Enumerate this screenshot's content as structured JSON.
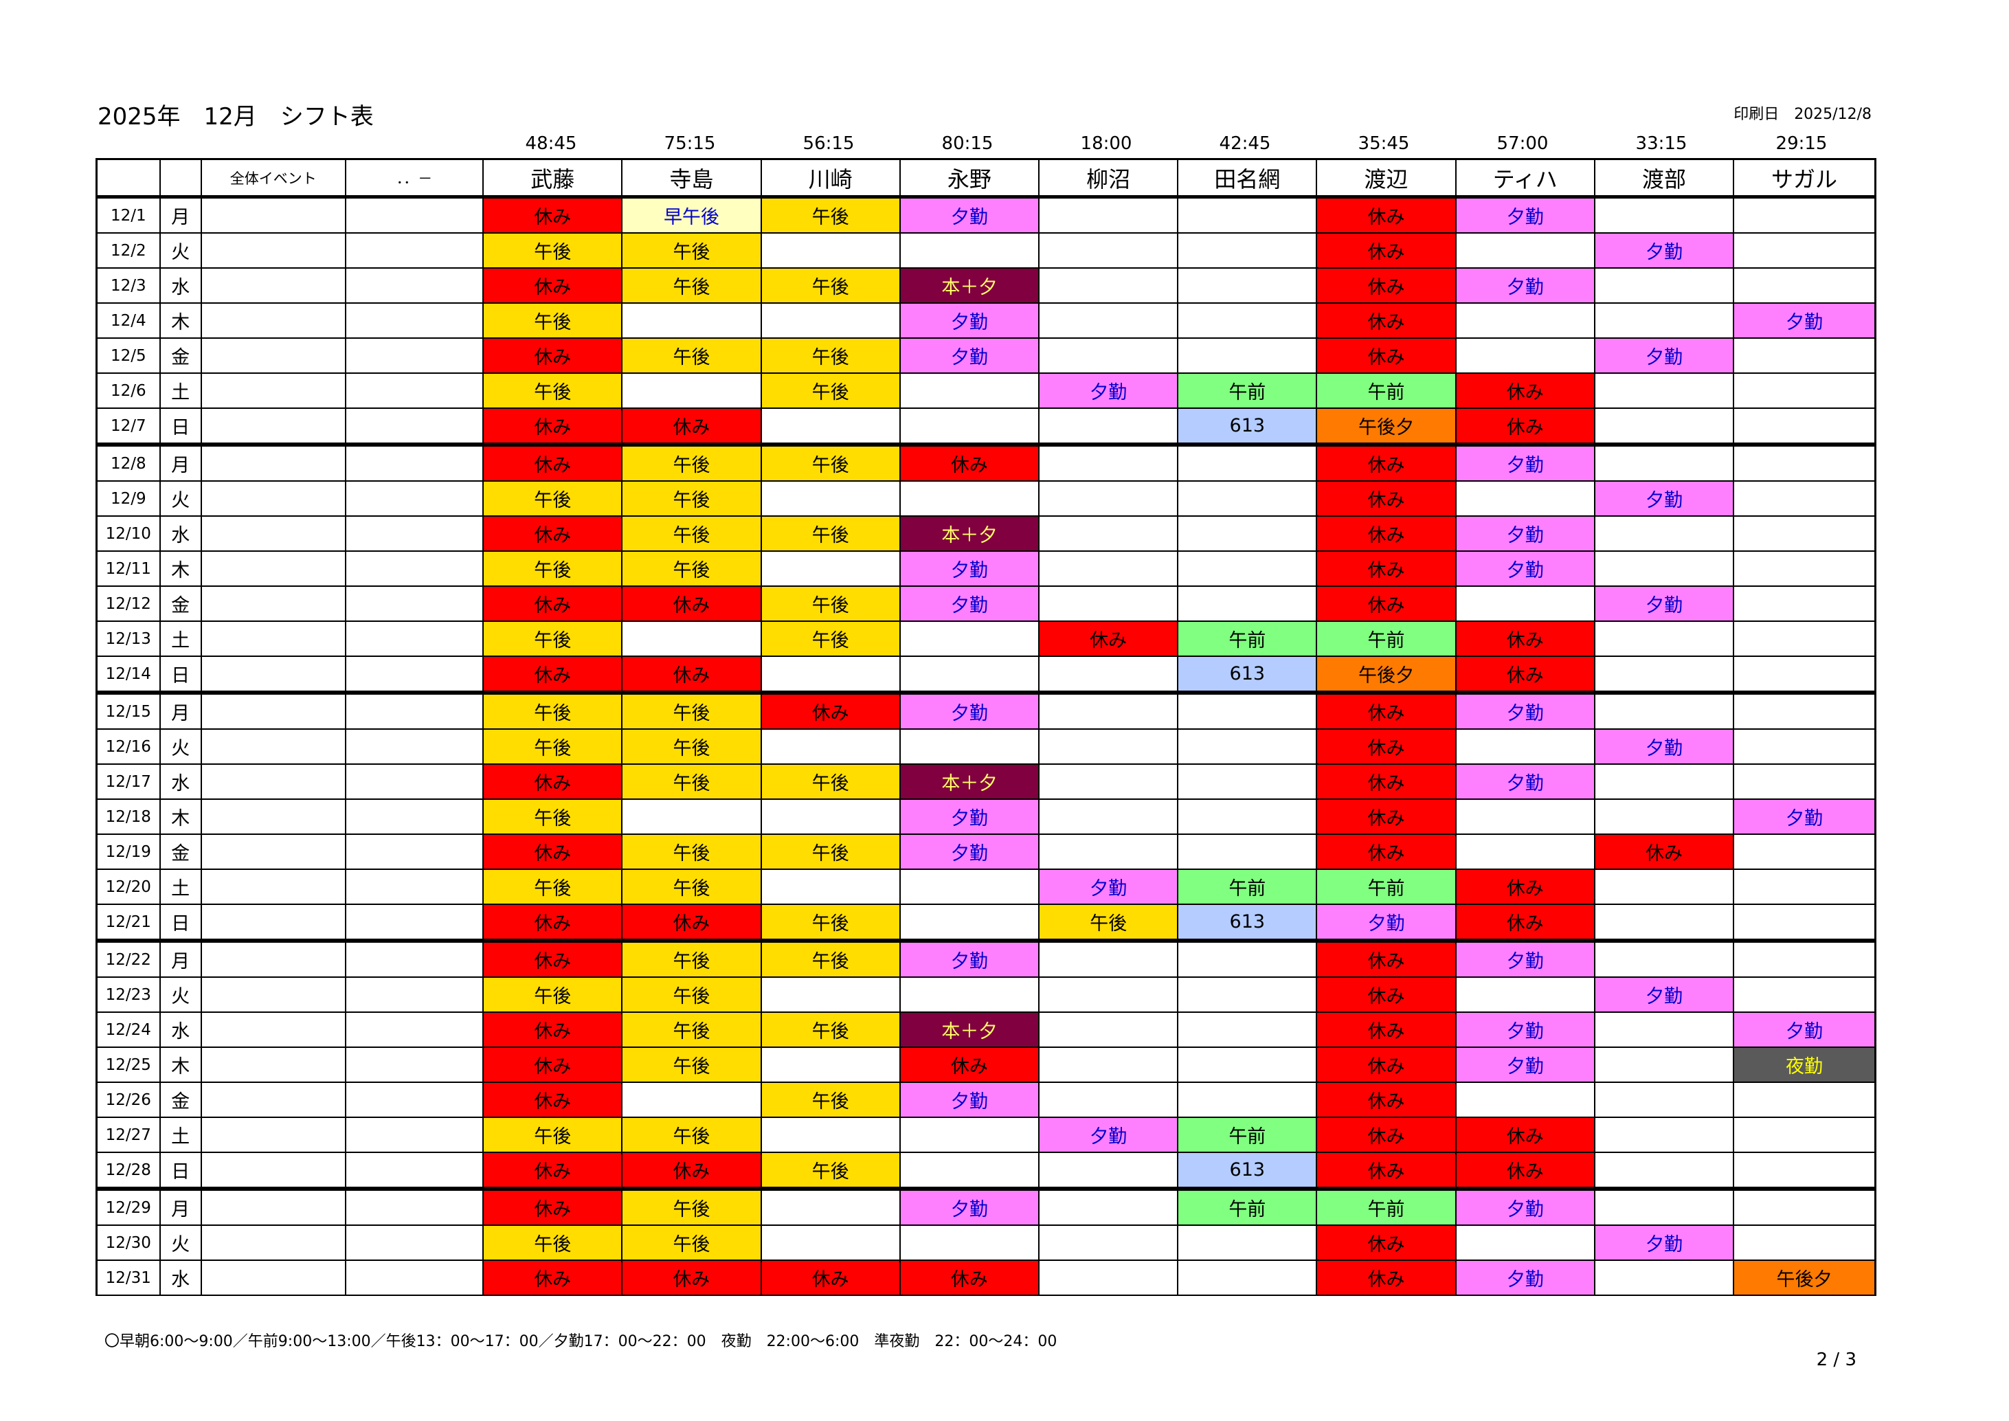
{
  "header": {
    "title": "2025年　12月　シフト表",
    "print_date": "印刷日　2025/12/8"
  },
  "columns": {
    "event": "全体イベント",
    "extra": "．．－"
  },
  "employees": [
    {
      "name": "武藤",
      "hours": "48:45"
    },
    {
      "name": "寺島",
      "hours": "75:15"
    },
    {
      "name": "川崎",
      "hours": "56:15"
    },
    {
      "name": "永野",
      "hours": "80:15"
    },
    {
      "name": "柳沼",
      "hours": "18:00"
    },
    {
      "name": "田名網",
      "hours": "42:45"
    },
    {
      "name": "渡辺",
      "hours": "35:45"
    },
    {
      "name": "ティハ",
      "hours": "57:00"
    },
    {
      "name": "渡部",
      "hours": "33:15"
    },
    {
      "name": "サガル",
      "hours": "29:15"
    }
  ],
  "shift_colors": {
    "休み": {
      "bg": "#ff0000",
      "fg": "#000000"
    },
    "午後": {
      "bg": "#ffdd00",
      "fg": "#000000"
    },
    "早午後": {
      "bg": "#ffffc0",
      "fg": "#0000cc"
    },
    "夕勤": {
      "bg": "#ff80ff",
      "fg": "#0000cc"
    },
    "本＋夕": {
      "bg": "#800040",
      "fg": "#ffff66"
    },
    "午前": {
      "bg": "#80ff80",
      "fg": "#000000"
    },
    "613": {
      "bg": "#b4ccff",
      "fg": "#000000"
    },
    "午後夕": {
      "bg": "#ff7a00",
      "fg": "#000000"
    },
    "夜勤": {
      "bg": "#5a5a5a",
      "fg": "#ffff00"
    }
  },
  "rows": [
    {
      "date": "12/1",
      "dow": "月",
      "shifts": [
        "休み",
        "早午後",
        "午後",
        "夕勤",
        "",
        "",
        "休み",
        "夕勤",
        "",
        ""
      ]
    },
    {
      "date": "12/2",
      "dow": "火",
      "shifts": [
        "午後",
        "午後",
        "",
        "",
        "",
        "",
        "休み",
        "",
        "夕勤",
        ""
      ]
    },
    {
      "date": "12/3",
      "dow": "水",
      "shifts": [
        "休み",
        "午後",
        "午後",
        "本＋夕",
        "",
        "",
        "休み",
        "夕勤",
        "",
        ""
      ]
    },
    {
      "date": "12/4",
      "dow": "木",
      "shifts": [
        "午後",
        "",
        "",
        "夕勤",
        "",
        "",
        "休み",
        "",
        "",
        "夕勤"
      ]
    },
    {
      "date": "12/5",
      "dow": "金",
      "shifts": [
        "休み",
        "午後",
        "午後",
        "夕勤",
        "",
        "",
        "休み",
        "",
        "夕勤",
        ""
      ]
    },
    {
      "date": "12/6",
      "dow": "土",
      "shifts": [
        "午後",
        "",
        "午後",
        "",
        "夕勤",
        "午前",
        "午前",
        "休み",
        "",
        ""
      ]
    },
    {
      "date": "12/7",
      "dow": "日",
      "shifts": [
        "休み",
        "休み",
        "",
        "",
        "",
        "613",
        "午後夕",
        "休み",
        "",
        ""
      ]
    },
    {
      "date": "12/8",
      "dow": "月",
      "week_start": true,
      "shifts": [
        "休み",
        "午後",
        "午後",
        "休み",
        "",
        "",
        "休み",
        "夕勤",
        "",
        ""
      ]
    },
    {
      "date": "12/9",
      "dow": "火",
      "shifts": [
        "午後",
        "午後",
        "",
        "",
        "",
        "",
        "休み",
        "",
        "夕勤",
        ""
      ]
    },
    {
      "date": "12/10",
      "dow": "水",
      "shifts": [
        "休み",
        "午後",
        "午後",
        "本＋夕",
        "",
        "",
        "休み",
        "夕勤",
        "",
        ""
      ]
    },
    {
      "date": "12/11",
      "dow": "木",
      "shifts": [
        "午後",
        "午後",
        "",
        "夕勤",
        "",
        "",
        "休み",
        "夕勤",
        "",
        ""
      ]
    },
    {
      "date": "12/12",
      "dow": "金",
      "shifts": [
        "休み",
        "休み",
        "午後",
        "夕勤",
        "",
        "",
        "休み",
        "",
        "夕勤",
        ""
      ]
    },
    {
      "date": "12/13",
      "dow": "土",
      "shifts": [
        "午後",
        "",
        "午後",
        "",
        "休み",
        "午前",
        "午前",
        "休み",
        "",
        ""
      ]
    },
    {
      "date": "12/14",
      "dow": "日",
      "shifts": [
        "休み",
        "休み",
        "",
        "",
        "",
        "613",
        "午後夕",
        "休み",
        "",
        ""
      ]
    },
    {
      "date": "12/15",
      "dow": "月",
      "week_start": true,
      "shifts": [
        "午後",
        "午後",
        "休み",
        "夕勤",
        "",
        "",
        "休み",
        "夕勤",
        "",
        ""
      ]
    },
    {
      "date": "12/16",
      "dow": "火",
      "shifts": [
        "午後",
        "午後",
        "",
        "",
        "",
        "",
        "休み",
        "",
        "夕勤",
        ""
      ]
    },
    {
      "date": "12/17",
      "dow": "水",
      "shifts": [
        "休み",
        "午後",
        "午後",
        "本＋夕",
        "",
        "",
        "休み",
        "夕勤",
        "",
        ""
      ]
    },
    {
      "date": "12/18",
      "dow": "木",
      "shifts": [
        "午後",
        "",
        "",
        "夕勤",
        "",
        "",
        "休み",
        "",
        "",
        "夕勤"
      ]
    },
    {
      "date": "12/19",
      "dow": "金",
      "shifts": [
        "休み",
        "午後",
        "午後",
        "夕勤",
        "",
        "",
        "休み",
        "",
        "休み",
        ""
      ]
    },
    {
      "date": "12/20",
      "dow": "土",
      "shifts": [
        "午後",
        "午後",
        "",
        "",
        "夕勤",
        "午前",
        "午前",
        "休み",
        "",
        ""
      ]
    },
    {
      "date": "12/21",
      "dow": "日",
      "shifts": [
        "休み",
        "休み",
        "午後",
        "",
        "午後",
        "613",
        "夕勤",
        "休み",
        "",
        ""
      ]
    },
    {
      "date": "12/22",
      "dow": "月",
      "week_start": true,
      "shifts": [
        "休み",
        "午後",
        "午後",
        "夕勤",
        "",
        "",
        "休み",
        "夕勤",
        "",
        ""
      ]
    },
    {
      "date": "12/23",
      "dow": "火",
      "shifts": [
        "午後",
        "午後",
        "",
        "",
        "",
        "",
        "休み",
        "",
        "夕勤",
        ""
      ]
    },
    {
      "date": "12/24",
      "dow": "水",
      "shifts": [
        "休み",
        "午後",
        "午後",
        "本＋夕",
        "",
        "",
        "休み",
        "夕勤",
        "",
        "夕勤"
      ]
    },
    {
      "date": "12/25",
      "dow": "木",
      "shifts": [
        "休み",
        "午後",
        "",
        "休み",
        "",
        "",
        "休み",
        "夕勤",
        "",
        "夜勤"
      ]
    },
    {
      "date": "12/26",
      "dow": "金",
      "shifts": [
        "休み",
        "",
        "午後",
        "夕勤",
        "",
        "",
        "休み",
        "",
        "",
        ""
      ]
    },
    {
      "date": "12/27",
      "dow": "土",
      "shifts": [
        "午後",
        "午後",
        "",
        "",
        "夕勤",
        "午前",
        "休み",
        "休み",
        "",
        ""
      ]
    },
    {
      "date": "12/28",
      "dow": "日",
      "shifts": [
        "休み",
        "休み",
        "午後",
        "",
        "",
        "613",
        "休み",
        "休み",
        "",
        ""
      ]
    },
    {
      "date": "12/29",
      "dow": "月",
      "week_start": true,
      "shifts": [
        "休み",
        "午後",
        "",
        "夕勤",
        "",
        "午前",
        "午前",
        "夕勤",
        "",
        ""
      ]
    },
    {
      "date": "12/30",
      "dow": "火",
      "shifts": [
        "午後",
        "午後",
        "",
        "",
        "",
        "",
        "休み",
        "",
        "夕勤",
        ""
      ]
    },
    {
      "date": "12/31",
      "dow": "水",
      "shifts": [
        "休み",
        "休み",
        "休み",
        "休み",
        "",
        "",
        "休み",
        "夕勤",
        "",
        "午後夕"
      ]
    }
  ],
  "footnote": "〇早朝6:00～9:00／午前9:00～13:00／午後13：00～17：00／夕勤17：00～22：00　夜勤　22:00～6:00　準夜勤　22：00～24：00",
  "page_number": "2 / 3"
}
